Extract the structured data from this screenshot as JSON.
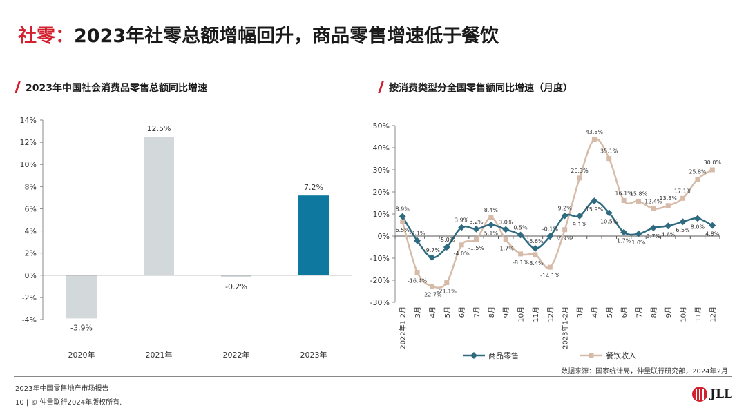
{
  "header": {
    "title_accent": "社零：",
    "title_rest": "2023年社零总额增幅回升，商品零售增速低于餐饮"
  },
  "sections": {
    "left_title": "2023年中国社会消费品零售总额同比增速",
    "right_title": "按消费类型分全国零售额同比增速（月度）"
  },
  "footer": {
    "source": "数据来源：国家统计局，仲量联行研究部，2024年2月",
    "report": "2023年中国零售地产市场报告",
    "page": "10",
    "copyright": "© 仲量联行2024年版权所有.",
    "logo": "JLL"
  },
  "colors": {
    "accent": "#d2202f",
    "bar_default": "#d3d8da",
    "bar_highlight": "#0f789f",
    "series_goods": "#2f6b80",
    "series_catering": "#d6bca8"
  },
  "chart_data": [
    {
      "type": "bar",
      "categories": [
        "2020年",
        "2021年",
        "2022年",
        "2023年"
      ],
      "values": [
        -3.9,
        12.5,
        -0.2,
        7.2
      ],
      "value_labels": [
        "-3.9%",
        "12.5%",
        "-0.2%",
        "7.2%"
      ],
      "highlight_index": 3,
      "ylim": [
        -4,
        14
      ],
      "yticks": [
        -4,
        -2,
        0,
        2,
        4,
        6,
        8,
        10,
        12,
        14
      ],
      "ytick_labels": [
        "-4%",
        "-2%",
        "0%",
        "2%",
        "4%",
        "6%",
        "8%",
        "10%",
        "12%",
        "14%"
      ]
    },
    {
      "type": "line",
      "categories": [
        "2022年1-2月",
        "3月",
        "4月",
        "5月",
        "6月",
        "7月",
        "8月",
        "9月",
        "10月",
        "11月",
        "12月",
        "2023年1-2月",
        "3月",
        "4月",
        "5月",
        "6月",
        "7月",
        "8月",
        "9月",
        "10月",
        "11月",
        "12月"
      ],
      "ylim": [
        -30,
        50
      ],
      "yticks": [
        -30,
        -20,
        -10,
        0,
        10,
        20,
        30,
        40,
        50
      ],
      "ytick_labels": [
        "-30%",
        "-20%",
        "-10%",
        "0%",
        "10%",
        "20%",
        "30%",
        "40%",
        "50%"
      ],
      "series": [
        {
          "name": "商品零售",
          "values": [
            8.9,
            -2.1,
            -9.7,
            -5.0,
            3.9,
            3.2,
            5.1,
            3.0,
            0.5,
            -5.6,
            -0.1,
            9.2,
            9.1,
            15.9,
            10.5,
            1.7,
            1.0,
            3.7,
            4.6,
            6.5,
            8.0,
            4.8
          ],
          "labels": [
            "8.9%",
            "-2.1%",
            "-9.7%",
            "-5.0%",
            "3.9%",
            "3.2%",
            "5.1%",
            "3.0%",
            "0.5%",
            "-5.6%",
            "-0.1%",
            "9.2%",
            "9.1%",
            "15.9%",
            "10.5%",
            "1.7%",
            "1.0%",
            "3.7%",
            "4.6%",
            "6.5%",
            "8.0%",
            "4.8%"
          ]
        },
        {
          "name": "餐饮收入",
          "values": [
            6.5,
            -16.4,
            -22.7,
            -21.1,
            -4.0,
            -1.5,
            8.4,
            -1.7,
            -8.1,
            -8.4,
            -14.1,
            2.9,
            26.3,
            43.8,
            35.1,
            16.1,
            15.8,
            12.4,
            13.8,
            17.1,
            25.8,
            30.0
          ],
          "labels": [
            "6.5%",
            "-16.4%",
            "-22.7%",
            "-21.1%",
            "-4.0%",
            "-1.5%",
            "8.4%",
            "-1.7%",
            "-8.1%",
            "-8.4%",
            "-14.1%",
            "2.9%",
            "26.3%",
            "43.8%",
            "35.1%",
            "16.1%",
            "15.8%",
            "12.4%",
            "13.8%",
            "17.1%",
            "25.8%",
            "30.0%"
          ]
        }
      ]
    }
  ]
}
